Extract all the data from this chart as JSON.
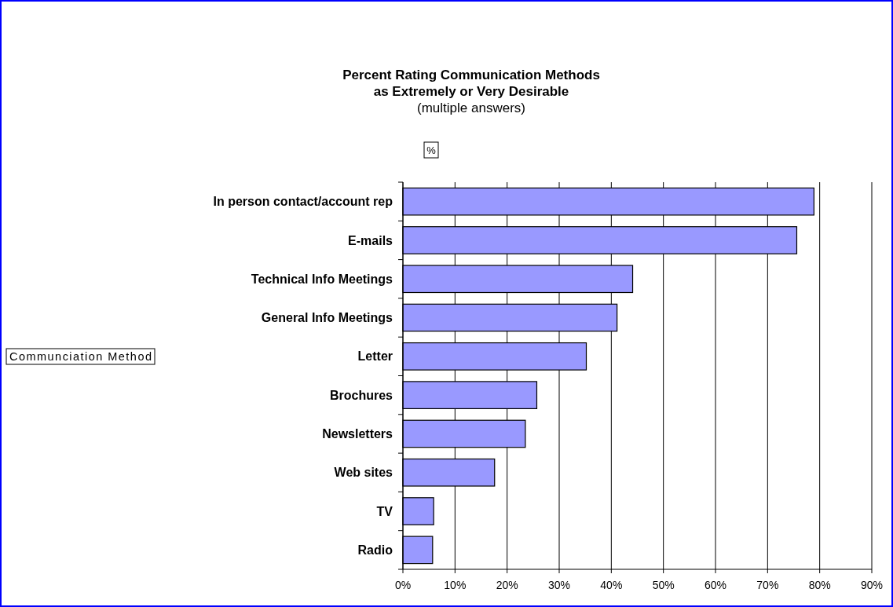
{
  "chart_data": {
    "type": "bar",
    "orientation": "horizontal",
    "title": "Percent Rating Communication Methods\nas Extremely or Very Desirable",
    "subtitle": "(multiple answers)",
    "xlabel": "%",
    "annotations": [
      "Communciation Method"
    ],
    "categories": [
      "In person contact/account rep",
      "E-mails",
      "Technical Info Meetings",
      "General Info Meetings",
      "Letter",
      "Brochures",
      "Newsletters",
      "Web sites",
      "TV",
      "Radio"
    ],
    "values": [
      78.9,
      75.6,
      44.1,
      41.1,
      35.2,
      25.7,
      23.5,
      17.6,
      5.9,
      5.7
    ],
    "color": "#9999ff",
    "xlim": [
      0,
      90
    ],
    "xticks": [
      {
        "value": 0,
        "label": "0%"
      },
      {
        "value": 10,
        "label": "10%"
      },
      {
        "value": 20,
        "label": "20%"
      },
      {
        "value": 30,
        "label": "30%"
      },
      {
        "value": 40,
        "label": "40%"
      },
      {
        "value": 50,
        "label": "50%"
      },
      {
        "value": 60,
        "label": "60%"
      },
      {
        "value": 70,
        "label": "70%"
      },
      {
        "value": 80,
        "label": "80%"
      },
      {
        "value": 90,
        "label": "90%"
      }
    ],
    "grid": "x"
  }
}
